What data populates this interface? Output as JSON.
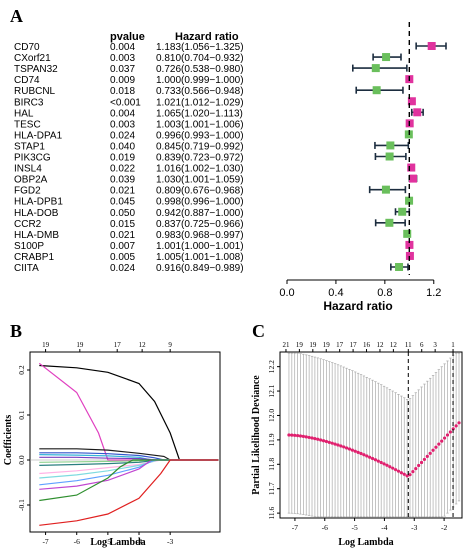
{
  "panel_labels": {
    "a": "A",
    "b": "B",
    "c": "C"
  },
  "chart_data": [
    {
      "type": "forest",
      "panel": "A",
      "headers": {
        "pvalue": "pvalue",
        "hr": "Hazard ratio"
      },
      "xlabel": "Hazard ratio",
      "xlim": [
        0.0,
        1.3
      ],
      "xticks": [
        "0.0",
        "0.4",
        "0.8",
        "1.2"
      ],
      "reference_line": 1.0,
      "colors": {
        "up": "#e0339e",
        "down": "#6abf5c",
        "ci": "#1c2d3f"
      },
      "rows": [
        {
          "gene": "CD70",
          "p": "0.004",
          "hr_text": "1.183(1.056−1.325)",
          "hr": 1.183,
          "lo": 1.056,
          "hi": 1.325
        },
        {
          "gene": "CXorf21",
          "p": "0.003",
          "hr_text": "0.810(0.704−0.932)",
          "hr": 0.81,
          "lo": 0.704,
          "hi": 0.932
        },
        {
          "gene": "TSPAN32",
          "p": "0.037",
          "hr_text": "0.726(0.538−0.980)",
          "hr": 0.726,
          "lo": 0.538,
          "hi": 0.98
        },
        {
          "gene": "CD74",
          "p": "0.009",
          "hr_text": "1.000(0.999−1.000)",
          "hr": 1.0,
          "lo": 0.999,
          "hi": 1.0
        },
        {
          "gene": "RUBCNL",
          "p": "0.018",
          "hr_text": "0.733(0.566−0.948)",
          "hr": 0.733,
          "lo": 0.566,
          "hi": 0.948
        },
        {
          "gene": "BIRC3",
          "p": "<0.001",
          "hr_text": "1.021(1.012−1.029)",
          "hr": 1.021,
          "lo": 1.012,
          "hi": 1.029
        },
        {
          "gene": "HAL",
          "p": "0.004",
          "hr_text": "1.065(1.020−1.113)",
          "hr": 1.065,
          "lo": 1.02,
          "hi": 1.113
        },
        {
          "gene": "TESC",
          "p": "0.003",
          "hr_text": "1.003(1.001−1.006)",
          "hr": 1.003,
          "lo": 1.001,
          "hi": 1.006
        },
        {
          "gene": "HLA-DPA1",
          "p": "0.024",
          "hr_text": "0.996(0.993−1.000)",
          "hr": 0.996,
          "lo": 0.993,
          "hi": 1.0
        },
        {
          "gene": "STAP1",
          "p": "0.040",
          "hr_text": "0.845(0.719−0.992)",
          "hr": 0.845,
          "lo": 0.719,
          "hi": 0.992
        },
        {
          "gene": "PIK3CG",
          "p": "0.019",
          "hr_text": "0.839(0.723−0.972)",
          "hr": 0.839,
          "lo": 0.723,
          "hi": 0.972
        },
        {
          "gene": "INSL4",
          "p": "0.022",
          "hr_text": "1.016(1.002−1.030)",
          "hr": 1.016,
          "lo": 1.002,
          "hi": 1.03
        },
        {
          "gene": "OBP2A",
          "p": "0.039",
          "hr_text": "1.030(1.001−1.059)",
          "hr": 1.03,
          "lo": 1.001,
          "hi": 1.059
        },
        {
          "gene": "FGD2",
          "p": "0.021",
          "hr_text": "0.809(0.676−0.968)",
          "hr": 0.809,
          "lo": 0.676,
          "hi": 0.968
        },
        {
          "gene": "HLA-DPB1",
          "p": "0.045",
          "hr_text": "0.998(0.996−1.000)",
          "hr": 0.998,
          "lo": 0.996,
          "hi": 1.0
        },
        {
          "gene": "HLA-DOB",
          "p": "0.050",
          "hr_text": "0.942(0.887−1.000)",
          "hr": 0.942,
          "lo": 0.887,
          "hi": 1.0
        },
        {
          "gene": "CCR2",
          "p": "0.015",
          "hr_text": "0.837(0.725−0.966)",
          "hr": 0.837,
          "lo": 0.725,
          "hi": 0.966
        },
        {
          "gene": "HLA-DMB",
          "p": "0.021",
          "hr_text": "0.983(0.968−0.997)",
          "hr": 0.983,
          "lo": 0.968,
          "hi": 0.997
        },
        {
          "gene": "S100P",
          "p": "0.007",
          "hr_text": "1.001(1.000−1.001)",
          "hr": 1.001,
          "lo": 1.0,
          "hi": 1.001
        },
        {
          "gene": "CRABP1",
          "p": "0.005",
          "hr_text": "1.005(1.001−1.008)",
          "hr": 1.005,
          "lo": 1.001,
          "hi": 1.008
        },
        {
          "gene": "CIITA",
          "p": "0.024",
          "hr_text": "0.916(0.849−0.989)",
          "hr": 0.916,
          "lo": 0.849,
          "hi": 0.989
        }
      ]
    },
    {
      "type": "line",
      "panel": "B",
      "xlabel": "Log Lambda",
      "ylabel": "Coefficients",
      "xlim": [
        -7.5,
        -1.4
      ],
      "ylim": [
        -0.16,
        0.24
      ],
      "xticks": [
        -7,
        -6,
        -5,
        -4,
        -3
      ],
      "yticks": [
        -0.1,
        0.0,
        0.1,
        0.2
      ],
      "top_ticks": [
        {
          "x": -7.0,
          "label": "19"
        },
        {
          "x": -5.9,
          "label": "19"
        },
        {
          "x": -4.7,
          "label": "17"
        },
        {
          "x": -3.9,
          "label": "12"
        },
        {
          "x": -3.0,
          "label": "9"
        }
      ],
      "series": [
        {
          "color": "#000000",
          "points": [
            [
              -7.2,
              0.21
            ],
            [
              -6,
              0.205
            ],
            [
              -5,
              0.195
            ],
            [
              -4,
              0.17
            ],
            [
              -3.5,
              0.13
            ],
            [
              -3,
              0.06
            ],
            [
              -2.7,
              0.0
            ]
          ]
        },
        {
          "color": "#e040c0",
          "points": [
            [
              -7.2,
              0.215
            ],
            [
              -6,
              0.15
            ],
            [
              -5.3,
              0.06
            ],
            [
              -5.0,
              0.0
            ]
          ]
        },
        {
          "color": "#1a1a1a",
          "points": [
            [
              -7.2,
              0.025
            ],
            [
              -6,
              0.025
            ],
            [
              -5,
              0.022
            ],
            [
              -4,
              0.015
            ],
            [
              -3.2,
              0.008
            ],
            [
              -3.0,
              0.0
            ]
          ]
        },
        {
          "color": "#3355cc",
          "points": [
            [
              -7.2,
              0.016
            ],
            [
              -6,
              0.016
            ],
            [
              -5,
              0.014
            ],
            [
              -4,
              0.01
            ],
            [
              -3.5,
              0.005
            ],
            [
              -3.2,
              0.0
            ]
          ]
        },
        {
          "color": "#33b3d9",
          "points": [
            [
              -7.2,
              0.012
            ],
            [
              -6,
              0.011
            ],
            [
              -5,
              0.009
            ],
            [
              -4,
              0.006
            ],
            [
              -3.6,
              0.0
            ]
          ]
        },
        {
          "color": "#7a3fbf",
          "points": [
            [
              -7.2,
              0.006
            ],
            [
              -6,
              0.006
            ],
            [
              -5,
              0.004
            ],
            [
              -4,
              0.003
            ],
            [
              -3.4,
              0.0
            ]
          ]
        },
        {
          "color": "#8fd18f",
          "points": [
            [
              -7.2,
              -0.005
            ],
            [
              -6,
              -0.004
            ],
            [
              -5,
              -0.003
            ],
            [
              -4,
              -0.002
            ],
            [
              -3.6,
              0.0
            ]
          ]
        },
        {
          "color": "#2a7f7f",
          "points": [
            [
              -7.2,
              -0.012
            ],
            [
              -6,
              -0.01
            ],
            [
              -5,
              -0.008
            ],
            [
              -4,
              -0.005
            ],
            [
              -3.4,
              0.0
            ]
          ]
        },
        {
          "color": "#ffb3e6",
          "points": [
            [
              -7.2,
              -0.03
            ],
            [
              -6,
              -0.024
            ],
            [
              -5,
              -0.017
            ],
            [
              -4,
              -0.01
            ],
            [
              -3.3,
              0.0
            ]
          ]
        },
        {
          "color": "#7fdbe0",
          "points": [
            [
              -7.2,
              -0.04
            ],
            [
              -6,
              -0.033
            ],
            [
              -5,
              -0.024
            ],
            [
              -4,
              -0.012
            ],
            [
              -3.4,
              0.0
            ]
          ]
        },
        {
          "color": "#5fa0ff",
          "points": [
            [
              -7.2,
              -0.055
            ],
            [
              -6,
              -0.046
            ],
            [
              -5,
              -0.034
            ],
            [
              -4,
              -0.016
            ],
            [
              -3.5,
              0.0
            ]
          ]
        },
        {
          "color": "#c046d0",
          "points": [
            [
              -7.2,
              -0.065
            ],
            [
              -6,
              -0.058
            ],
            [
              -5,
              -0.045
            ],
            [
              -4,
              -0.02
            ],
            [
              -3.6,
              0.0
            ]
          ]
        },
        {
          "color": "#2f8f2f",
          "points": [
            [
              -7.2,
              -0.09
            ],
            [
              -6,
              -0.078
            ],
            [
              -5,
              -0.04
            ],
            [
              -4.6,
              -0.015
            ],
            [
              -4.2,
              0.0
            ]
          ]
        },
        {
          "color": "#e02020",
          "points": [
            [
              -7.2,
              -0.145
            ],
            [
              -6,
              -0.135
            ],
            [
              -5,
              -0.12
            ],
            [
              -4,
              -0.085
            ],
            [
              -3.3,
              -0.03
            ],
            [
              -3.0,
              0.0
            ]
          ]
        }
      ]
    },
    {
      "type": "line",
      "panel": "C",
      "xlabel": "Log Lambda",
      "ylabel": "Partial Likelihood Deviance",
      "xlim": [
        -7.5,
        -1.4
      ],
      "ylim": [
        11.58,
        12.26
      ],
      "xticks": [
        -7,
        -6,
        -5,
        -4,
        -3,
        -2
      ],
      "yticks": [
        11.6,
        11.7,
        11.8,
        11.9,
        12.0,
        12.1,
        12.2
      ],
      "top_ticks": [
        {
          "x": -7.3,
          "label": "21"
        },
        {
          "x": -6.85,
          "label": "19"
        },
        {
          "x": -6.4,
          "label": "19"
        },
        {
          "x": -5.95,
          "label": "19"
        },
        {
          "x": -5.5,
          "label": "17"
        },
        {
          "x": -5.05,
          "label": "17"
        },
        {
          "x": -4.6,
          "label": "16"
        },
        {
          "x": -4.15,
          "label": "12"
        },
        {
          "x": -3.7,
          "label": "12"
        },
        {
          "x": -3.2,
          "label": "11"
        },
        {
          "x": -2.75,
          "label": "6"
        },
        {
          "x": -2.3,
          "label": "3"
        },
        {
          "x": -1.7,
          "label": "1"
        }
      ],
      "vlines": [
        -3.2,
        -1.7
      ],
      "point_color": "#e0206e",
      "curve": {
        "x_start": -7.2,
        "x_end": -1.5,
        "n": 60
      }
    }
  ]
}
